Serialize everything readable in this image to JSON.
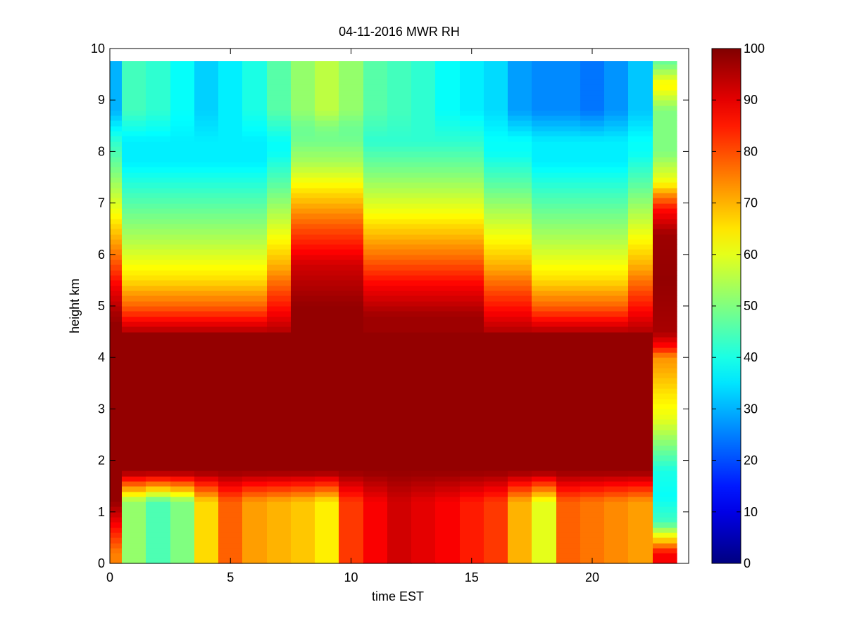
{
  "chart_data": {
    "type": "heatmap",
    "title": "04-11-2016 MWR RH",
    "xlabel": "time EST",
    "ylabel": "height km",
    "xlim": [
      0,
      24
    ],
    "ylim": [
      0,
      10
    ],
    "xticks": [
      0,
      5,
      10,
      15,
      20
    ],
    "yticks": [
      0,
      1,
      2,
      3,
      4,
      5,
      6,
      7,
      8,
      9,
      10
    ],
    "colorbar": {
      "range": [
        0,
        100
      ],
      "ticks": [
        0,
        10,
        20,
        30,
        40,
        50,
        60,
        70,
        80,
        90,
        100
      ],
      "colormap": "jet"
    },
    "cell_height_km": 0.1,
    "columns": [
      {
        "t0": 0.0,
        "t1": 0.5,
        "low": 75,
        "low_top": 0.2,
        "band": 98,
        "band_bot": 1.2,
        "band_top": 4.7,
        "tpl": "deep",
        "lvl": 30
      },
      {
        "t0": 0.5,
        "t1": 1.5,
        "low": 52,
        "band": 98,
        "tpl": "dip",
        "lvl": 44
      },
      {
        "t0": 1.5,
        "t1": 2.5,
        "low": 45,
        "band": 98,
        "tpl": "dip",
        "lvl": 42
      },
      {
        "t0": 2.5,
        "t1": 3.5,
        "low": 50,
        "band": 98,
        "tpl": "dip",
        "lvl": 38
      },
      {
        "t0": 3.5,
        "t1": 4.5,
        "low": 66,
        "band": 98,
        "tpl": "dip",
        "lvl": 33
      },
      {
        "t0": 4.5,
        "t1": 5.5,
        "low": 78,
        "band": 98,
        "tpl": "dip",
        "lvl": 36
      },
      {
        "t0": 5.5,
        "t1": 6.5,
        "low": 72,
        "band": 98,
        "tpl": "dip",
        "lvl": 40
      },
      {
        "t0": 6.5,
        "t1": 7.5,
        "low": 70,
        "band": 98,
        "tpl": "mid",
        "lvl": 46
      },
      {
        "t0": 7.5,
        "t1": 8.5,
        "low": 68,
        "band": 98,
        "tpl": "peak",
        "lvl": 52
      },
      {
        "t0": 8.5,
        "t1": 9.5,
        "low": 64,
        "band": 98,
        "tpl": "peak",
        "lvl": 56
      },
      {
        "t0": 9.5,
        "t1": 10.5,
        "low": 82,
        "band": 98,
        "tpl": "peak",
        "lvl": 52
      },
      {
        "t0": 10.5,
        "t1": 11.5,
        "low": 88,
        "band": 98,
        "tpl": "deep",
        "lvl": 46
      },
      {
        "t0": 11.5,
        "t1": 12.5,
        "low": 92,
        "band": 98,
        "tpl": "deep",
        "lvl": 44
      },
      {
        "t0": 12.5,
        "t1": 13.5,
        "low": 90,
        "band": 98,
        "tpl": "deep",
        "lvl": 42
      },
      {
        "t0": 13.5,
        "t1": 14.5,
        "low": 88,
        "band": 98,
        "tpl": "deep",
        "lvl": 38
      },
      {
        "t0": 14.5,
        "t1": 15.5,
        "low": 85,
        "band": 98,
        "tpl": "deep",
        "lvl": 36
      },
      {
        "t0": 15.5,
        "t1": 16.5,
        "low": 82,
        "band": 98,
        "tpl": "mid",
        "lvl": 34
      },
      {
        "t0": 16.5,
        "t1": 17.5,
        "low": 70,
        "band": 98,
        "tpl": "mid",
        "lvl": 28
      },
      {
        "t0": 17.5,
        "t1": 18.5,
        "low": 60,
        "band": 98,
        "tpl": "dip",
        "lvl": 26
      },
      {
        "t0": 18.5,
        "t1": 19.5,
        "low": 78,
        "band": 98,
        "tpl": "dip",
        "lvl": 26
      },
      {
        "t0": 19.5,
        "t1": 20.5,
        "low": 76,
        "band": 98,
        "tpl": "dip",
        "lvl": 24
      },
      {
        "t0": 20.5,
        "t1": 21.5,
        "low": 74,
        "band": 98,
        "tpl": "dip",
        "lvl": 27
      },
      {
        "t0": 21.5,
        "t1": 22.5,
        "low": 72,
        "band": 98,
        "tpl": "mid",
        "lvl": 32
      },
      {
        "t0": 22.5,
        "t1": 23.5,
        "tpl": "custom",
        "lvl": 45
      }
    ]
  }
}
